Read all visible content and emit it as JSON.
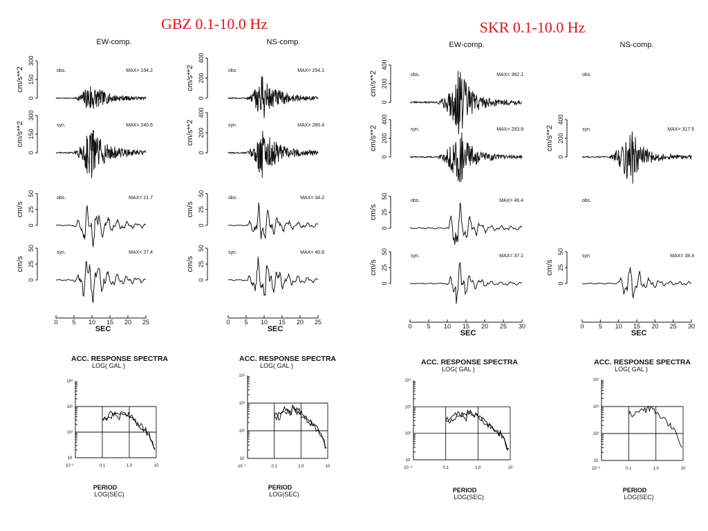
{
  "titles": [
    {
      "id": "gbz",
      "text": "GBZ 0.1-10.0 Hz"
    },
    {
      "id": "skr",
      "text": "SKR 0.1-10.0 Hz"
    }
  ],
  "chart_data": [
    {
      "type": "line",
      "station": "GBZ",
      "component": "EW-comp.",
      "xlabel": "SEC",
      "xlim": [
        0,
        25
      ],
      "xticks": [
        "0",
        "5",
        "10",
        "15",
        "20",
        "25"
      ],
      "panels": [
        {
          "kind": "acc",
          "label": "obs.",
          "max": "MAX=  154.2",
          "ylabel": "cm/s**2",
          "yticks": [
            "0",
            "150",
            "300"
          ]
        },
        {
          "kind": "acc",
          "label": "syn.",
          "max": "MAX=  240.6",
          "ylabel": "cm/s**2",
          "yticks": [
            "0",
            "150",
            "300"
          ]
        },
        {
          "kind": "vel",
          "label": "obs.",
          "max": "MAX=   21.7",
          "ylabel": "cm/s",
          "yticks": [
            "0",
            "25",
            "50"
          ]
        },
        {
          "kind": "vel",
          "label": "syn.",
          "max": "MAX=   27.4",
          "ylabel": "cm/s",
          "yticks": [
            "0",
            "25",
            "50"
          ]
        }
      ]
    },
    {
      "type": "line",
      "station": "GBZ",
      "component": "NS-comp.",
      "xlabel": "SEC",
      "xlim": [
        0,
        25
      ],
      "xticks": [
        "0",
        "5",
        "10",
        "15",
        "20",
        "25"
      ],
      "panels": [
        {
          "kind": "acc",
          "label": "obs.",
          "max": "MAX=  254.1",
          "ylabel": "cm/s**2",
          "yticks": [
            "0",
            "200",
            "400"
          ]
        },
        {
          "kind": "acc",
          "label": "syn.",
          "max": "MAX=  285.4",
          "ylabel": "cm/s**2",
          "yticks": [
            "0",
            "200",
            "400"
          ]
        },
        {
          "kind": "vel",
          "label": "obs.",
          "max": "MAX=   34.2",
          "ylabel": "cm/s",
          "yticks": [
            "0",
            "25",
            "50"
          ]
        },
        {
          "kind": "vel",
          "label": "syn.",
          "max": "MAX=   40.8",
          "ylabel": "cm/s",
          "yticks": [
            "0",
            "25",
            "50"
          ]
        }
      ]
    },
    {
      "type": "line",
      "station": "SKR",
      "component": "EW-comp.",
      "xlabel": "SEC",
      "xlim": [
        0,
        30
      ],
      "xticks": [
        "0",
        "5",
        "10",
        "15",
        "20",
        "25",
        "30"
      ],
      "panels": [
        {
          "kind": "acc",
          "label": "obs.",
          "max": "MAX=  382.1",
          "ylabel": "cm/s**2",
          "yticks": [
            "0",
            "200",
            "400"
          ]
        },
        {
          "kind": "acc",
          "label": "syn.",
          "max": "MAX=  293.9",
          "ylabel": "cm/s**2",
          "yticks": [
            "0",
            "200",
            "400"
          ]
        },
        {
          "kind": "vel",
          "label": "obs.",
          "max": "MAX=   46.4",
          "ylabel": "cm/s",
          "yticks": [
            "0",
            "25",
            "50"
          ]
        },
        {
          "kind": "vel",
          "label": "syn.",
          "max": "MAX=   37.1",
          "ylabel": "cm/s",
          "yticks": [
            "0",
            "25",
            "50"
          ]
        }
      ]
    },
    {
      "type": "line",
      "station": "SKR",
      "component": "NS-comp.",
      "xlabel": "SEC",
      "xlim": [
        0,
        30
      ],
      "xticks": [
        "0",
        "5",
        "10",
        "15",
        "20",
        "25",
        "30"
      ],
      "panels": [
        {
          "kind": "acc",
          "label": "obs.",
          "max": "",
          "ylabel": "",
          "yticks": []
        },
        {
          "kind": "acc",
          "label": "syn.",
          "max": "MAX=  317.5",
          "ylabel": "cm/s**2",
          "yticks": [
            "0",
            "200",
            "400"
          ]
        },
        {
          "kind": "vel",
          "label": "obs.",
          "max": "",
          "ylabel": "",
          "yticks": []
        },
        {
          "kind": "vel",
          "label": "syn.",
          "max": "MAX=   38.4",
          "ylabel": "cm/s",
          "yticks": [
            "0",
            "25",
            "50"
          ]
        }
      ]
    }
  ],
  "spectra": [
    {
      "title": "ACC. RESPONSE SPECTRA",
      "ylabel": "LOG(   GAL  )",
      "xlabel": "PERIOD",
      "xunit": "LOG(SEC)",
      "xticks": [
        "10⁻²",
        "0.1",
        "1.0",
        "10"
      ],
      "yticks": [
        "10⁴",
        "10³",
        "10²",
        "10"
      ],
      "curves": 2
    },
    {
      "title": "ACC. RESPONSE SPECTRA",
      "ylabel": "LOG(   GAL  )",
      "xlabel": "PERIOD",
      "xunit": "LOG(SEC)",
      "xticks": [
        "10⁻²",
        "0.1",
        "1.0",
        "10"
      ],
      "yticks": [
        "10⁴",
        "10³",
        "10²",
        "10"
      ],
      "curves": 2
    },
    {
      "title": "ACC. RESPONSE SPECTRA",
      "ylabel": "LOG(   GAL  )",
      "xlabel": "PERIOD",
      "xunit": "LOG(SEC)",
      "xticks": [
        "10⁻²",
        "0.1",
        "1.0",
        "10"
      ],
      "yticks": [
        "10⁴",
        "10³",
        "10²",
        "10"
      ],
      "curves": 2
    },
    {
      "title": "ACC. RESPONSE SPECTRA",
      "ylabel": "LOG(   GAL  )",
      "xlabel": "PERIOD",
      "xunit": "LOG(SEC)",
      "xticks": [
        "10⁻²",
        "0.1",
        "1.0",
        "10"
      ],
      "yticks": [
        "10⁴",
        "10³",
        "10²",
        "10"
      ],
      "curves": 1
    }
  ]
}
